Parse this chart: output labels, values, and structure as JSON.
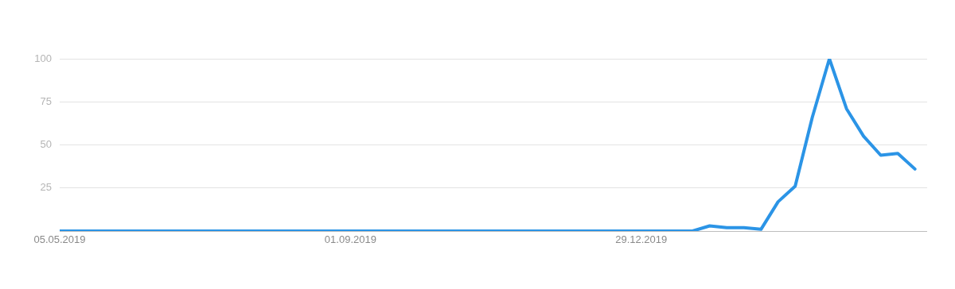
{
  "chart_data": {
    "type": "line",
    "x": [
      "2019-05-05",
      "2019-05-12",
      "2019-05-19",
      "2019-05-26",
      "2019-06-02",
      "2019-06-09",
      "2019-06-16",
      "2019-06-23",
      "2019-06-30",
      "2019-07-07",
      "2019-07-14",
      "2019-07-21",
      "2019-07-28",
      "2019-08-04",
      "2019-08-11",
      "2019-08-18",
      "2019-08-25",
      "2019-09-01",
      "2019-09-08",
      "2019-09-15",
      "2019-09-22",
      "2019-09-29",
      "2019-10-06",
      "2019-10-13",
      "2019-10-20",
      "2019-10-27",
      "2019-11-03",
      "2019-11-10",
      "2019-11-17",
      "2019-11-24",
      "2019-12-01",
      "2019-12-08",
      "2019-12-15",
      "2019-12-22",
      "2019-12-29",
      "2020-01-05",
      "2020-01-12",
      "2020-01-19",
      "2020-01-26",
      "2020-02-02",
      "2020-02-09",
      "2020-02-16",
      "2020-02-23",
      "2020-03-01",
      "2020-03-08",
      "2020-03-15",
      "2020-03-22",
      "2020-03-29",
      "2020-04-05",
      "2020-04-12",
      "2020-04-19"
    ],
    "series": [
      {
        "color": "#2b94e6",
        "values": [
          0,
          0,
          0,
          0,
          0,
          0,
          0,
          0,
          0,
          0,
          0,
          0,
          0,
          0,
          0,
          0,
          0,
          0,
          0,
          0,
          0,
          0,
          0,
          0,
          0,
          0,
          0,
          0,
          0,
          0,
          0,
          0,
          0,
          0,
          0,
          0,
          0,
          0,
          3,
          2,
          2,
          1,
          17,
          26,
          66,
          100,
          71,
          55,
          44,
          45,
          36
        ]
      }
    ],
    "xlim": [
      "2019-05-05",
      "2020-04-24"
    ],
    "xticks": [
      {
        "value": "2019-05-05",
        "label": "05.05.2019"
      },
      {
        "value": "2019-09-01",
        "label": "01.09.2019"
      },
      {
        "value": "2019-12-29",
        "label": "29.12.2019"
      }
    ],
    "ylim": [
      0,
      100
    ],
    "yticks": [
      {
        "value": 0,
        "label": null
      },
      25,
      50,
      75,
      100
    ],
    "grid": "y",
    "legend": false,
    "marker": "none",
    "line_style": "solid"
  }
}
